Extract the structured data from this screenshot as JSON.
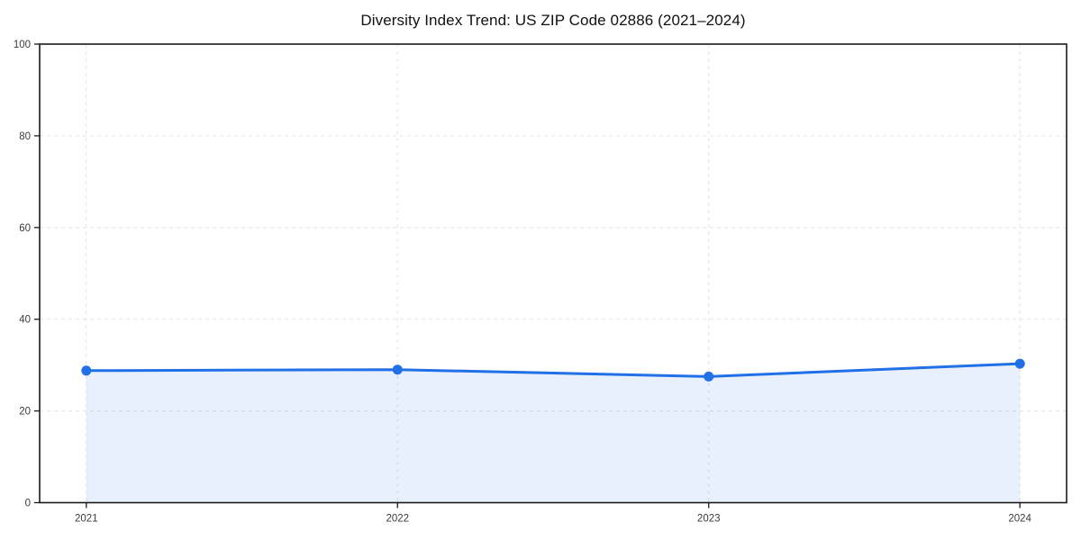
{
  "figure": {
    "background": "#ffffff"
  },
  "chart_data": {
    "type": "area",
    "title": "Diversity Index Trend: US ZIP Code 02886 (2021–2024)",
    "x": [
      2021,
      2022,
      2023,
      2024
    ],
    "x_tick_labels": [
      "2021",
      "2022",
      "2023",
      "2024"
    ],
    "series": [
      {
        "name": "Diversity Index",
        "values": [
          28.8,
          29.0,
          27.5,
          30.3
        ]
      }
    ],
    "ylim": [
      0,
      100
    ],
    "yticks": [
      0,
      20,
      40,
      60,
      80,
      100
    ],
    "ytick_labels": [
      "0",
      "20",
      "40",
      "60",
      "80",
      "100"
    ],
    "grid": "dashed",
    "legend": "none",
    "x_margin_fraction": 0.05,
    "colors": {
      "line": "#2170e8",
      "marker": "#2170e8",
      "fill": "#2170e8",
      "fill_opacity": 0.1,
      "grid": "#e6e6e6",
      "spine": "#1a1a1a",
      "tick_label": "#3a3a3a",
      "title": "#111111",
      "background": "#ffffff"
    }
  }
}
